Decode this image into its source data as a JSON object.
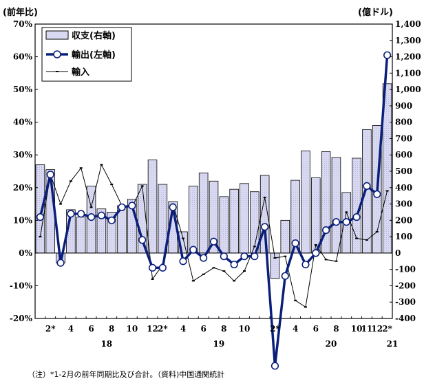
{
  "chart_data": {
    "type": "bar",
    "left_axis": {
      "unit_label": "(前年比)",
      "ylim": [
        -0.2,
        0.7
      ],
      "ticks": [
        "-20%",
        "-10%",
        "0%",
        "10%",
        "20%",
        "30%",
        "40%",
        "50%",
        "60%",
        "70%"
      ]
    },
    "right_axis": {
      "unit_label": "(億ドル)",
      "ylim": [
        -400,
        1400
      ],
      "ticks": [
        "-400",
        "-300",
        "-200",
        "-100",
        "0",
        "100",
        "200",
        "300",
        "400",
        "500",
        "600",
        "700",
        "800",
        "900",
        "1,000",
        "1,100",
        "1,200",
        "1,300",
        "1,400"
      ]
    },
    "x_tick_labels": [
      {
        "i": 1,
        "label": "2*"
      },
      {
        "i": 3,
        "label": "4"
      },
      {
        "i": 5,
        "label": "6"
      },
      {
        "i": 7,
        "label": "8"
      },
      {
        "i": 9,
        "label": "10"
      },
      {
        "i": 11,
        "label": "12"
      },
      {
        "i": 12,
        "label": "2*"
      },
      {
        "i": 14,
        "label": "4"
      },
      {
        "i": 16,
        "label": "6"
      },
      {
        "i": 18,
        "label": "8"
      },
      {
        "i": 20,
        "label": "10"
      },
      {
        "i": 23,
        "label": "2*"
      },
      {
        "i": 25,
        "label": "4"
      },
      {
        "i": 27,
        "label": "6"
      },
      {
        "i": 29,
        "label": "8"
      },
      {
        "i": 31,
        "label": "10"
      },
      {
        "i": 32,
        "label": "11"
      },
      {
        "i": 33,
        "label": "12"
      },
      {
        "i": 34,
        "label": "2*"
      }
    ],
    "year_labels": [
      {
        "i": 6.5,
        "label": "18"
      },
      {
        "i": 17.5,
        "label": "19"
      },
      {
        "i": 28.5,
        "label": "20"
      },
      {
        "i": 34.5,
        "label": "21"
      }
    ],
    "legend_position": "top-left",
    "colors": {
      "balance_fill": "#d9d9f2",
      "balance_stroke": "#000000",
      "export": "#0a1f7a",
      "import": "#000000"
    },
    "series": [
      {
        "name": "収支(右軸)",
        "type": "bar",
        "axis": "right",
        "values": [
          540,
          510,
          -60,
          265,
          220,
          410,
          270,
          250,
          290,
          330,
          420,
          570,
          420,
          315,
          130,
          410,
          490,
          440,
          345,
          390,
          425,
          375,
          475,
          -155,
          200,
          445,
          625,
          460,
          620,
          585,
          370,
          580,
          755,
          780,
          1035
        ]
      },
      {
        "name": "輸出(左軸)",
        "type": "line",
        "axis": "left",
        "values": [
          0.11,
          0.24,
          -0.03,
          0.12,
          0.12,
          0.11,
          0.115,
          0.1,
          0.14,
          0.145,
          0.04,
          -0.045,
          -0.045,
          0.14,
          -0.025,
          0.01,
          -0.015,
          0.035,
          -0.01,
          -0.035,
          -0.01,
          -0.01,
          0.08,
          -0.345,
          -0.07,
          0.03,
          -0.035,
          0.0,
          0.07,
          0.095,
          0.095,
          0.11,
          0.205,
          0.18,
          0.605
        ]
      },
      {
        "name": "輸入",
        "type": "line",
        "axis": "left",
        "values": [
          0.05,
          0.24,
          0.15,
          0.22,
          0.26,
          0.14,
          0.27,
          0.21,
          0.145,
          0.14,
          0.205,
          -0.08,
          -0.035,
          0.15,
          0.045,
          -0.085,
          -0.065,
          -0.045,
          -0.055,
          -0.085,
          -0.055,
          0.02,
          0.17,
          -0.015,
          -0.01,
          -0.145,
          -0.165,
          0.025,
          -0.02,
          -0.025,
          0.125,
          0.045,
          0.04,
          0.065,
          0.19
        ]
      }
    ]
  },
  "footnote": "（注）*1-2月の前年同期比及び合計。（資料)中国通関統計"
}
